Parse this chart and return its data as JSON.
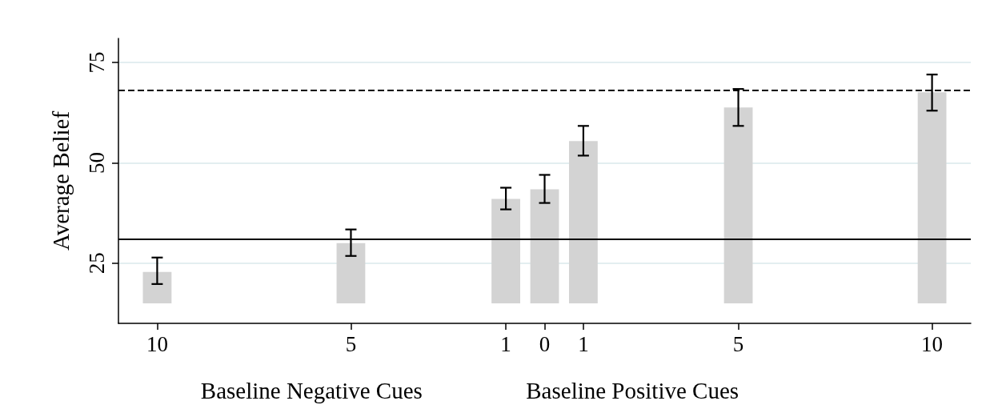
{
  "chart_data": {
    "type": "bar",
    "ylabel": "Average Belief",
    "annotations": [
      "Baseline Negative Cues",
      "Baseline Positive Cues"
    ],
    "x": [
      -10,
      -5,
      -1,
      0,
      1,
      5,
      10
    ],
    "base": [
      15,
      15,
      15,
      15,
      15,
      15,
      15
    ],
    "values": [
      7.8,
      15,
      26,
      28.4,
      40.4,
      48.8,
      52.6
    ],
    "errors": [
      [
        19.8,
        26.4
      ],
      [
        26.8,
        33.4
      ],
      [
        38.4,
        43.8
      ],
      [
        40,
        47
      ],
      [
        51.8,
        59.2
      ],
      [
        59.2,
        68.4
      ],
      [
        63,
        72
      ]
    ],
    "color": "#d3d3d3",
    "xlim": [
      -11,
      11
    ],
    "xticks": [
      {
        "value": -10,
        "label": "10"
      },
      {
        "value": -5,
        "label": "5"
      },
      {
        "value": -1,
        "label": "1"
      },
      {
        "value": 0,
        "label": "0"
      },
      {
        "value": 1,
        "label": "1"
      },
      {
        "value": 5,
        "label": "5"
      },
      {
        "value": 10,
        "label": "10"
      }
    ],
    "ylim": [
      10,
      81
    ],
    "yticks": [
      25,
      50,
      75
    ],
    "grid": "y",
    "ref_lines": [
      {
        "axis": "y",
        "value": 68,
        "label": null,
        "line_style": "dashed",
        "color": "#000000"
      },
      {
        "axis": "y",
        "value": 31,
        "label": null,
        "line_style": "solid",
        "color": "#000000"
      }
    ]
  }
}
